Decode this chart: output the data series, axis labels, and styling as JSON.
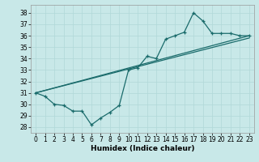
{
  "xlabel": "Humidex (Indice chaleur)",
  "bg_color": "#c8e8e8",
  "grid_color": "#b0d8d8",
  "line_color": "#1a6b6b",
  "xlim": [
    -0.5,
    23.5
  ],
  "ylim": [
    27.5,
    38.7
  ],
  "xticks": [
    0,
    1,
    2,
    3,
    4,
    5,
    6,
    7,
    8,
    9,
    10,
    11,
    12,
    13,
    14,
    15,
    16,
    17,
    18,
    19,
    20,
    21,
    22,
    23
  ],
  "yticks": [
    28,
    29,
    30,
    31,
    32,
    33,
    34,
    35,
    36,
    37,
    38
  ],
  "series1_x": [
    0,
    1,
    2,
    3,
    4,
    5,
    6,
    7,
    8,
    9,
    10,
    11,
    12,
    13,
    14,
    15,
    16,
    17,
    18,
    19,
    20,
    21,
    22,
    23
  ],
  "series1_y": [
    31.0,
    30.7,
    30.0,
    29.9,
    29.4,
    29.4,
    28.2,
    28.8,
    29.3,
    29.9,
    33.0,
    33.2,
    34.2,
    34.0,
    35.7,
    36.0,
    36.3,
    38.0,
    37.3,
    36.2,
    36.2,
    36.2,
    36.0,
    36.0
  ],
  "series2_x": [
    0,
    23
  ],
  "series2_y": [
    31.0,
    36.0
  ],
  "series3_x": [
    0,
    23
  ],
  "series3_y": [
    31.0,
    35.8
  ],
  "tick_fontsize": 5.5,
  "xlabel_fontsize": 6.5
}
